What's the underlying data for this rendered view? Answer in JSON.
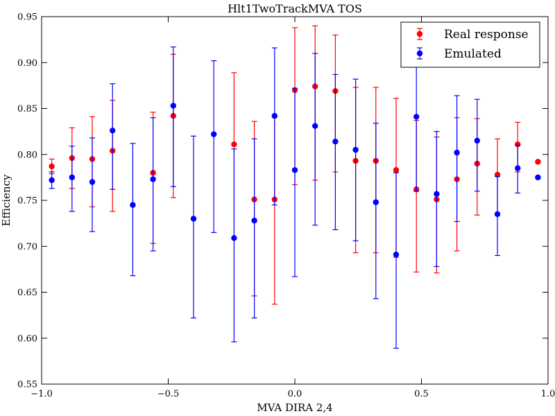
{
  "chart_data": {
    "type": "scatter",
    "title": "Hlt1TwoTrackMVA TOS",
    "xlabel": "MVA DIRA 2,4",
    "ylabel": "Efficiency",
    "xlim": [
      -1.0,
      1.0
    ],
    "ylim": [
      0.55,
      0.95
    ],
    "xticks": [
      -1.0,
      -0.5,
      0.0,
      0.5,
      1.0
    ],
    "xtick_labels": [
      "−1.0",
      "−0.5",
      "0.0",
      "0.5",
      "1.0"
    ],
    "yticks": [
      0.55,
      0.6,
      0.65,
      0.7,
      0.75,
      0.8,
      0.85,
      0.9,
      0.95
    ],
    "ytick_labels": [
      "0.55",
      "0.60",
      "0.65",
      "0.70",
      "0.75",
      "0.80",
      "0.85",
      "0.90",
      "0.95"
    ],
    "grid": false,
    "legend_position": "top-right",
    "series": [
      {
        "name": "Real response",
        "color": "#ff0000",
        "points": [
          {
            "x": -0.96,
            "y": 0.787,
            "lo": 0.779,
            "hi": 0.795
          },
          {
            "x": -0.88,
            "y": 0.796,
            "lo": 0.763,
            "hi": 0.829
          },
          {
            "x": -0.8,
            "y": 0.795,
            "lo": 0.743,
            "hi": 0.841
          },
          {
            "x": -0.72,
            "y": 0.804,
            "lo": 0.738,
            "hi": 0.859
          },
          {
            "x": -0.56,
            "y": 0.78,
            "lo": 0.703,
            "hi": 0.846
          },
          {
            "x": -0.48,
            "y": 0.842,
            "lo": 0.753,
            "hi": 0.909
          },
          {
            "x": -0.24,
            "y": 0.811,
            "lo": 0.708,
            "hi": 0.889
          },
          {
            "x": -0.16,
            "y": 0.751,
            "lo": 0.646,
            "hi": 0.836
          },
          {
            "x": -0.08,
            "y": 0.751,
            "lo": 0.637,
            "hi": 0.84
          },
          {
            "x": 0.0,
            "y": 0.87,
            "lo": 0.767,
            "hi": 0.938
          },
          {
            "x": 0.08,
            "y": 0.874,
            "lo": 0.772,
            "hi": 0.94
          },
          {
            "x": 0.16,
            "y": 0.869,
            "lo": 0.781,
            "hi": 0.93
          },
          {
            "x": 0.24,
            "y": 0.793,
            "lo": 0.693,
            "hi": 0.873
          },
          {
            "x": 0.32,
            "y": 0.793,
            "lo": 0.693,
            "hi": 0.873
          },
          {
            "x": 0.4,
            "y": 0.783,
            "lo": 0.688,
            "hi": 0.861
          },
          {
            "x": 0.48,
            "y": 0.762,
            "lo": 0.672,
            "hi": 0.837
          },
          {
            "x": 0.56,
            "y": 0.751,
            "lo": 0.671,
            "hi": 0.819
          },
          {
            "x": 0.64,
            "y": 0.773,
            "lo": 0.695,
            "hi": 0.84
          },
          {
            "x": 0.72,
            "y": 0.79,
            "lo": 0.734,
            "hi": 0.839
          },
          {
            "x": 0.8,
            "y": 0.778,
            "lo": 0.734,
            "hi": 0.817
          },
          {
            "x": 0.88,
            "y": 0.811,
            "lo": 0.781,
            "hi": 0.835
          },
          {
            "x": 0.96,
            "y": 0.792,
            "lo": 0.791,
            "hi": 0.793
          }
        ]
      },
      {
        "name": "Emulated",
        "color": "#0000ff",
        "points": [
          {
            "x": -0.96,
            "y": 0.772,
            "lo": 0.763,
            "hi": 0.781
          },
          {
            "x": -0.88,
            "y": 0.775,
            "lo": 0.738,
            "hi": 0.809
          },
          {
            "x": -0.8,
            "y": 0.77,
            "lo": 0.716,
            "hi": 0.818
          },
          {
            "x": -0.72,
            "y": 0.826,
            "lo": 0.762,
            "hi": 0.877
          },
          {
            "x": -0.64,
            "y": 0.745,
            "lo": 0.668,
            "hi": 0.812
          },
          {
            "x": -0.56,
            "y": 0.773,
            "lo": 0.695,
            "hi": 0.84
          },
          {
            "x": -0.48,
            "y": 0.853,
            "lo": 0.765,
            "hi": 0.917
          },
          {
            "x": -0.4,
            "y": 0.73,
            "lo": 0.622,
            "hi": 0.82
          },
          {
            "x": -0.32,
            "y": 0.822,
            "lo": 0.715,
            "hi": 0.902
          },
          {
            "x": -0.24,
            "y": 0.709,
            "lo": 0.596,
            "hi": 0.806
          },
          {
            "x": -0.16,
            "y": 0.728,
            "lo": 0.622,
            "hi": 0.817
          },
          {
            "x": -0.08,
            "y": 0.842,
            "lo": 0.745,
            "hi": 0.916
          },
          {
            "x": 0.0,
            "y": 0.783,
            "lo": 0.667,
            "hi": 0.872
          },
          {
            "x": 0.08,
            "y": 0.831,
            "lo": 0.723,
            "hi": 0.91
          },
          {
            "x": 0.16,
            "y": 0.814,
            "lo": 0.718,
            "hi": 0.887
          },
          {
            "x": 0.24,
            "y": 0.805,
            "lo": 0.706,
            "hi": 0.882
          },
          {
            "x": 0.32,
            "y": 0.748,
            "lo": 0.643,
            "hi": 0.834
          },
          {
            "x": 0.4,
            "y": 0.691,
            "lo": 0.589,
            "hi": 0.78
          },
          {
            "x": 0.48,
            "y": 0.841,
            "lo": 0.76,
            "hi": 0.916
          },
          {
            "x": 0.56,
            "y": 0.757,
            "lo": 0.678,
            "hi": 0.825
          },
          {
            "x": 0.64,
            "y": 0.802,
            "lo": 0.727,
            "hi": 0.864
          },
          {
            "x": 0.72,
            "y": 0.815,
            "lo": 0.76,
            "hi": 0.86
          },
          {
            "x": 0.8,
            "y": 0.735,
            "lo": 0.69,
            "hi": 0.776
          },
          {
            "x": 0.88,
            "y": 0.785,
            "lo": 0.758,
            "hi": 0.81
          },
          {
            "x": 0.96,
            "y": 0.775,
            "lo": 0.774,
            "hi": 0.776
          }
        ]
      }
    ]
  }
}
